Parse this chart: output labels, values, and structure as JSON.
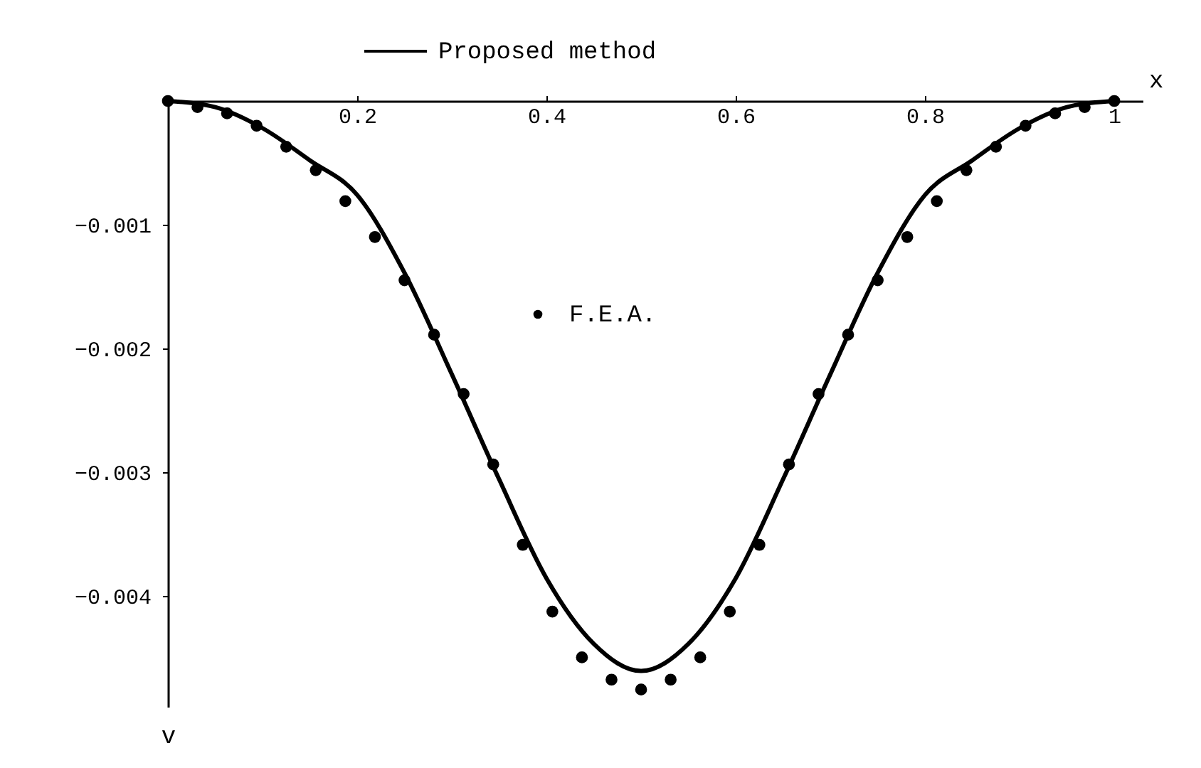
{
  "chart_data": {
    "type": "line",
    "xlabel": "x",
    "ylabel": "v",
    "xlim": [
      0,
      1.03
    ],
    "ylim": [
      -0.0049,
      0
    ],
    "xticks": [
      0.2,
      0.4,
      0.6,
      0.8,
      1
    ],
    "yticks": [
      -0.001,
      -0.002,
      -0.003,
      -0.004
    ],
    "grid": false,
    "legend": "top",
    "series": [
      {
        "name": "Proposed method",
        "color": "#000000",
        "marker": "none",
        "line_style": "solid",
        "x": [
          0,
          0.05,
          0.1,
          0.15,
          0.2,
          0.25,
          0.3,
          0.35,
          0.4,
          0.45,
          0.5,
          0.55,
          0.6,
          0.65,
          0.7,
          0.75,
          0.8,
          0.85,
          0.9,
          0.95,
          1
        ],
        "values": [
          0,
          -5e-05,
          -0.00022,
          -0.00048,
          -0.00076,
          -0.00139,
          -0.00221,
          -0.00306,
          -0.00386,
          -0.00439,
          -0.00461,
          -0.00439,
          -0.00386,
          -0.00306,
          -0.00221,
          -0.00139,
          -0.00076,
          -0.00048,
          -0.00022,
          -5e-05,
          0
        ]
      },
      {
        "name": "F.E.A.",
        "type": "scatter",
        "color": "#000000",
        "marker": "circle",
        "x": [
          0,
          0.03125,
          0.0625,
          0.09375,
          0.125,
          0.15625,
          0.1875,
          0.21875,
          0.25,
          0.28125,
          0.3125,
          0.34375,
          0.375,
          0.40625,
          0.4375,
          0.46875,
          0.5,
          0.53125,
          0.5625,
          0.59375,
          0.625,
          0.65625,
          0.6875,
          0.71875,
          0.75,
          0.78125,
          0.8125,
          0.84375,
          0.875,
          0.90625,
          0.9375,
          0.96875,
          1
        ],
        "values": [
          0,
          -5e-05,
          -0.0001,
          -0.0002,
          -0.00037,
          -0.00056,
          -0.00081,
          -0.0011,
          -0.00145,
          -0.00189,
          -0.00237,
          -0.00294,
          -0.00359,
          -0.00413,
          -0.0045,
          -0.00468,
          -0.00476,
          -0.00468,
          -0.0045,
          -0.00413,
          -0.00359,
          -0.00294,
          -0.00237,
          -0.00189,
          -0.00145,
          -0.0011,
          -0.00081,
          -0.00056,
          -0.00037,
          -0.0002,
          -0.0001,
          -5e-05,
          0
        ]
      }
    ]
  }
}
